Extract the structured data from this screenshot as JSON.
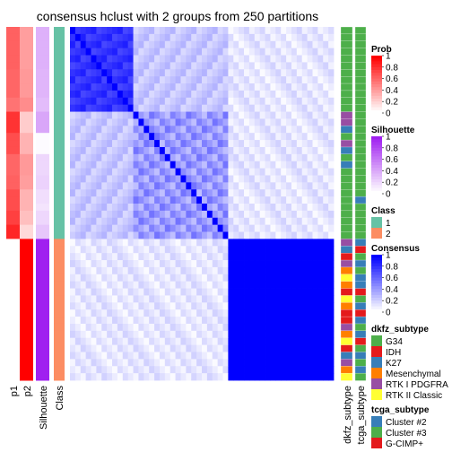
{
  "chart_data": {
    "type": "heatmap",
    "title": "consensus hclust with 2 groups from 250 partitions",
    "n_samples": 50,
    "annotation_columns": [
      {
        "name": "p1",
        "values": [
          0.62,
          0.62,
          0.62,
          0.62,
          0.62,
          0.62,
          0.6,
          0.6,
          0.6,
          0.6,
          0.55,
          0.55,
          0.8,
          0.8,
          0.8,
          0.7,
          0.7,
          0.7,
          0.6,
          0.6,
          0.6,
          0.62,
          0.62,
          0.7,
          0.7,
          0.7,
          0.75,
          0.75,
          0.85,
          0.85,
          0.0,
          0.0,
          0.0,
          0.0,
          0.0,
          0.0,
          0.0,
          0.0,
          0.0,
          0.0,
          0.0,
          0.0,
          0.0,
          0.0,
          0.0,
          0.0,
          0.0,
          0.0,
          0.0,
          0.0
        ]
      },
      {
        "name": "p2",
        "values": [
          0.38,
          0.38,
          0.38,
          0.38,
          0.38,
          0.38,
          0.4,
          0.4,
          0.4,
          0.4,
          0.45,
          0.45,
          0.2,
          0.2,
          0.2,
          0.3,
          0.3,
          0.3,
          0.4,
          0.4,
          0.4,
          0.38,
          0.38,
          0.3,
          0.3,
          0.3,
          0.25,
          0.25,
          0.15,
          0.15,
          1.0,
          1.0,
          1.0,
          1.0,
          1.0,
          1.0,
          1.0,
          1.0,
          1.0,
          1.0,
          1.0,
          1.0,
          1.0,
          1.0,
          1.0,
          1.0,
          1.0,
          1.0,
          1.0,
          1.0
        ]
      },
      {
        "name": "Silhouette",
        "values": [
          0.35,
          0.35,
          0.35,
          0.35,
          0.35,
          0.35,
          0.33,
          0.33,
          0.33,
          0.33,
          0.3,
          0.3,
          0.4,
          0.4,
          0.4,
          0.02,
          0.02,
          0.02,
          0.18,
          0.18,
          0.18,
          0.2,
          0.2,
          0.15,
          0.15,
          0.12,
          0.18,
          0.18,
          0.25,
          0.25,
          1,
          1,
          1,
          1,
          1,
          1,
          1,
          1,
          1,
          1,
          1,
          1,
          1,
          1,
          1,
          1,
          1,
          1,
          1,
          1
        ]
      },
      {
        "name": "Class",
        "values": [
          1,
          1,
          1,
          1,
          1,
          1,
          1,
          1,
          1,
          1,
          1,
          1,
          1,
          1,
          1,
          1,
          1,
          1,
          1,
          1,
          1,
          1,
          1,
          1,
          1,
          1,
          1,
          1,
          1,
          1,
          2,
          2,
          2,
          2,
          2,
          2,
          2,
          2,
          2,
          2,
          2,
          2,
          2,
          2,
          2,
          2,
          2,
          2,
          2,
          2
        ]
      }
    ],
    "row_annotations": [
      {
        "name": "dkfz_subtype",
        "values": [
          "G34",
          "G34",
          "G34",
          "G34",
          "G34",
          "G34",
          "G34",
          "G34",
          "G34",
          "G34",
          "G34",
          "G34",
          "RTK I PDGFRA",
          "RTK I PDGFRA",
          "K27",
          "G34",
          "RTK I PDGFRA",
          "K27",
          "G34",
          "K27",
          "G34",
          "G34",
          "G34",
          "G34",
          "G34",
          "G34",
          "G34",
          "G34",
          "G34",
          "G34",
          "RTK I PDGFRA",
          "K27",
          "IDH",
          "RTK I PDGFRA",
          "Mesenchymal",
          "RTK II Classic",
          "Mesenchymal",
          "IDH",
          "RTK II Classic",
          "Mesenchymal",
          "IDH",
          "IDH",
          "RTK I PDGFRA",
          "Mesenchymal",
          "RTK II Classic",
          "IDH",
          "K27",
          "RTK I PDGFRA",
          "Mesenchymal",
          "RTK II Classic"
        ]
      },
      {
        "name": "tcga_subtype",
        "values": [
          "Cluster #3",
          "Cluster #3",
          "Cluster #3",
          "Cluster #3",
          "Cluster #3",
          "Cluster #3",
          "Cluster #3",
          "Cluster #3",
          "Cluster #3",
          "Cluster #3",
          "Cluster #3",
          "Cluster #3",
          "Cluster #3",
          "Cluster #3",
          "Cluster #3",
          "Cluster #3",
          "Cluster #3",
          "Cluster #3",
          "Cluster #3",
          "Cluster #3",
          "Cluster #3",
          "Cluster #3",
          "Cluster #3",
          "Cluster #3",
          "Cluster #2",
          "Cluster #3",
          "Cluster #3",
          "Cluster #3",
          "Cluster #3",
          "Cluster #3",
          "Cluster #2",
          "G-CIMP+",
          "Cluster #3",
          "Cluster #2",
          "Cluster #3",
          "Cluster #2",
          "Cluster #2",
          "G-CIMP+",
          "Cluster #3",
          "Cluster #2",
          "G-CIMP+",
          "Cluster #2",
          "Cluster #3",
          "Cluster #2",
          "G-CIMP+",
          "Cluster #3",
          "Cluster #2",
          "Cluster #3",
          "Cluster #2",
          "Cluster #3"
        ]
      }
    ],
    "consensus_blocks": [
      {
        "rows": [
          0,
          11
        ],
        "cols": [
          0,
          11
        ],
        "value": 0.75
      },
      {
        "rows": [
          0,
          11
        ],
        "cols": [
          12,
          29
        ],
        "value": 0.2
      },
      {
        "rows": [
          12,
          29
        ],
        "cols": [
          12,
          29
        ],
        "value": 0.3
      },
      {
        "rows": [
          0,
          29
        ],
        "cols": [
          30,
          49
        ],
        "value": 0.02
      },
      {
        "rows": [
          30,
          49
        ],
        "cols": [
          30,
          49
        ],
        "value": 1.0
      },
      {
        "rows": [
          30,
          49
        ],
        "cols": [
          0,
          29
        ],
        "value": 0.05
      }
    ],
    "legends": [
      {
        "title": "Prob",
        "type": "gradient",
        "ticks": [
          "1",
          "0.8",
          "0.6",
          "0.4",
          "0.2",
          "0"
        ],
        "colors": [
          "#ff0000",
          "#ffffff"
        ]
      },
      {
        "title": "Silhouette",
        "type": "gradient",
        "ticks": [
          "1",
          "0.8",
          "0.6",
          "0.4",
          "0.2",
          "0"
        ],
        "colors": [
          "#a020f0",
          "#ffffff"
        ]
      },
      {
        "title": "Class",
        "type": "discrete",
        "items": [
          {
            "label": "1",
            "color": "#66c2a5"
          },
          {
            "label": "2",
            "color": "#fc8d62"
          }
        ]
      },
      {
        "title": "Consensus",
        "type": "gradient",
        "ticks": [
          "1",
          "0.8",
          "0.6",
          "0.4",
          "0.2",
          "0"
        ],
        "colors": [
          "#0000ff",
          "#ffffff"
        ]
      },
      {
        "title": "dkfz_subtype",
        "type": "discrete",
        "items": [
          {
            "label": "G34",
            "color": "#4daf4a"
          },
          {
            "label": "IDH",
            "color": "#e41a1c"
          },
          {
            "label": "K27",
            "color": "#377eb8"
          },
          {
            "label": "Mesenchymal",
            "color": "#ff7f00"
          },
          {
            "label": "RTK I PDGFRA",
            "color": "#984ea3"
          },
          {
            "label": "RTK II Classic",
            "color": "#ffff33"
          }
        ]
      },
      {
        "title": "tcga_subtype",
        "type": "discrete",
        "items": [
          {
            "label": "Cluster #2",
            "color": "#377eb8"
          },
          {
            "label": "Cluster #3",
            "color": "#4daf4a"
          },
          {
            "label": "G-CIMP+",
            "color": "#e41a1c"
          }
        ]
      }
    ]
  }
}
